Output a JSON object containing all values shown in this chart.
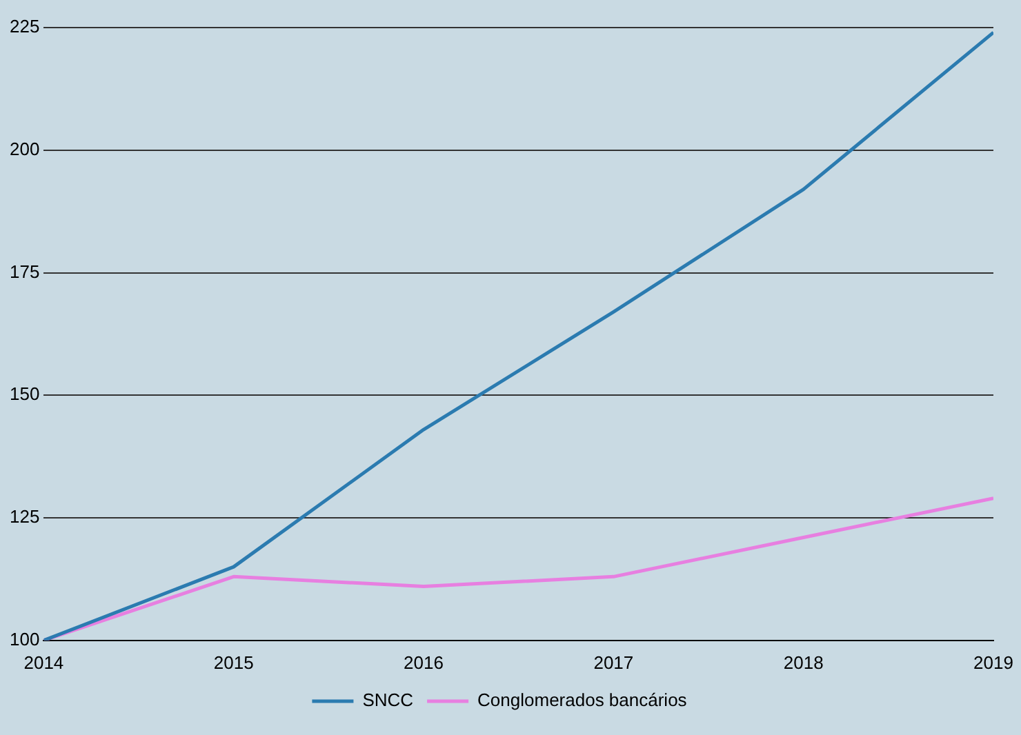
{
  "chart_data": {
    "type": "line",
    "x": [
      2014,
      2015,
      2016,
      2017,
      2018,
      2019
    ],
    "xlim": [
      2014,
      2019
    ],
    "xticks": [
      2014,
      2015,
      2016,
      2017,
      2018,
      2019
    ],
    "ylim": [
      100,
      225
    ],
    "yticks": [
      100,
      125,
      150,
      175,
      200,
      225
    ],
    "grid": "y",
    "legend": "bottom",
    "marker": "none",
    "line_style": "solid",
    "series": [
      {
        "name": "SNCC",
        "color": "#2b7bb0",
        "values": [
          100,
          115,
          143,
          167,
          192,
          224
        ]
      },
      {
        "name": "Conglomerados bancários",
        "color": "#e77fe0",
        "values": [
          100,
          113,
          111,
          113,
          121,
          129
        ]
      }
    ]
  }
}
